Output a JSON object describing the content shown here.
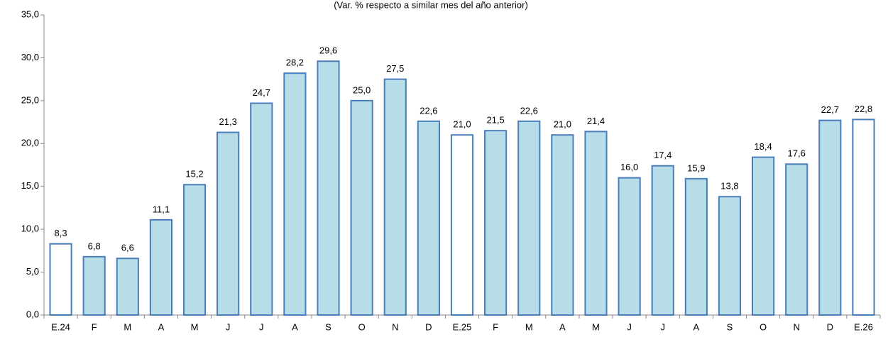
{
  "chart_data": {
    "type": "bar",
    "subtitle": "(Var. % respecto a similar mes del año anterior)",
    "categories": [
      "E.24",
      "F",
      "M",
      "A",
      "M",
      "J",
      "J",
      "A",
      "S",
      "O",
      "N",
      "D",
      "E.25",
      "F",
      "M",
      "A",
      "M",
      "J",
      "J",
      "A",
      "S",
      "O",
      "N",
      "D",
      "E.26"
    ],
    "values": [
      8.3,
      6.8,
      6.6,
      11.1,
      15.2,
      21.3,
      24.7,
      28.2,
      29.6,
      25.0,
      27.5,
      22.6,
      21.0,
      21.5,
      22.6,
      21.0,
      21.4,
      16.0,
      17.4,
      15.9,
      13.8,
      18.4,
      17.6,
      22.7,
      22.8
    ],
    "value_labels": [
      "8,3",
      "6,8",
      "6,6",
      "11,1",
      "15,2",
      "21,3",
      "24,7",
      "28,2",
      "29,6",
      "25,0",
      "27,5",
      "22,6",
      "21,0",
      "21,5",
      "22,6",
      "21,0",
      "21,4",
      "16,0",
      "17,4",
      "15,9",
      "13,8",
      "18,4",
      "17,6",
      "22,7",
      "22,8"
    ],
    "colors": [
      "#ffffff",
      "#b7dde8",
      "#b7dde8",
      "#b7dde8",
      "#b7dde8",
      "#b7dde8",
      "#b7dde8",
      "#b7dde8",
      "#b7dde8",
      "#b7dde8",
      "#b7dde8",
      "#b7dde8",
      "#ffffff",
      "#b7dde8",
      "#b7dde8",
      "#b7dde8",
      "#b7dde8",
      "#b7dde8",
      "#b7dde8",
      "#b7dde8",
      "#b7dde8",
      "#b7dde8",
      "#b7dde8",
      "#b7dde8",
      "#ffffff"
    ],
    "edge_color": "#4a7ebb",
    "ylim": [
      0,
      35
    ],
    "yticks": [
      {
        "value": 0,
        "label": "0,0"
      },
      {
        "value": 5,
        "label": "5,0"
      },
      {
        "value": 10,
        "label": "10,0"
      },
      {
        "value": 15,
        "label": "15,0"
      },
      {
        "value": 20,
        "label": "20,0"
      },
      {
        "value": 25,
        "label": "25,0"
      },
      {
        "value": 30,
        "label": "30,0"
      },
      {
        "value": 35,
        "label": "35,0"
      }
    ],
    "grid": false
  }
}
